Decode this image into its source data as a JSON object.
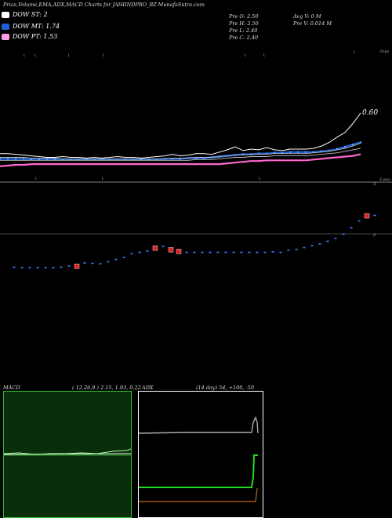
{
  "header": {
    "title": "Price,Volume,EMA,ADX,MACD Charts for JAIHINDPRO_BZ MunafaSutra.com"
  },
  "legend": [
    {
      "label": "DOW ST: 2",
      "color": "#ffffff"
    },
    {
      "label": "DOW MT: 1.74",
      "color": "#1e5fd6"
    },
    {
      "label": "DOW PT: 1.53",
      "color": "#ff9ee8"
    }
  ],
  "stats": {
    "prev_open": "Pre   O: 2.50",
    "prev_high": "Pre   H: 2.50",
    "prev_low": "Pre   L: 2.40",
    "prev_close": "Pre   C: 2.40",
    "avg_volume": "Avg V: 0   M",
    "prev_volume": "Pre   V: 0.014   M"
  },
  "colors": {
    "price": "#ffffff",
    "ema_short": "#1e5fd6",
    "ema_long": "#ff66cc",
    "ema_grey": "#bbbbbb",
    "macd_bg": "#0a2e0a",
    "macd_border": "#2fbf2f",
    "adx_green": "#22dd22",
    "adx_orange": "#c06a20",
    "adx_grey": "#aaaaaa"
  },
  "chart_data": [
    {
      "type": "line",
      "name": "price-ema",
      "x": [
        0,
        1,
        2,
        3,
        4,
        5,
        6,
        7,
        8,
        9,
        10,
        11,
        12,
        13,
        14,
        15,
        16,
        17,
        18,
        19,
        20,
        21,
        22,
        23,
        24,
        25,
        26,
        27,
        28,
        29,
        30,
        31,
        32,
        33,
        34,
        35,
        36,
        37,
        38,
        39,
        40,
        41,
        42,
        43,
        44,
        45,
        46
      ],
      "series": [
        {
          "key": "price",
          "values": [
            1.38,
            1.38,
            1.37,
            1.36,
            1.35,
            1.34,
            1.33,
            1.33,
            1.34,
            1.33,
            1.33,
            1.32,
            1.33,
            1.32,
            1.33,
            1.34,
            1.33,
            1.33,
            1.32,
            1.33,
            1.34,
            1.35,
            1.37,
            1.35,
            1.36,
            1.38,
            1.38,
            1.37,
            1.4,
            1.43,
            1.47,
            1.42,
            1.44,
            1.43,
            1.46,
            1.43,
            1.42,
            1.44,
            1.44,
            1.44,
            1.45,
            1.48,
            1.53,
            1.6,
            1.66,
            1.78,
            1.92
          ]
        },
        {
          "key": "ema_short",
          "values": [
            1.31,
            1.31,
            1.31,
            1.31,
            1.3,
            1.3,
            1.3,
            1.3,
            1.3,
            1.3,
            1.3,
            1.3,
            1.3,
            1.3,
            1.3,
            1.3,
            1.3,
            1.3,
            1.3,
            1.3,
            1.3,
            1.31,
            1.31,
            1.31,
            1.32,
            1.32,
            1.32,
            1.33,
            1.34,
            1.35,
            1.36,
            1.37,
            1.37,
            1.38,
            1.38,
            1.39,
            1.39,
            1.4,
            1.4,
            1.4,
            1.4,
            1.41,
            1.42,
            1.44,
            1.47,
            1.5,
            1.53
          ]
        },
        {
          "key": "ema_grey1",
          "values": [
            1.33,
            1.33,
            1.33,
            1.33,
            1.32,
            1.32,
            1.32,
            1.32,
            1.31,
            1.31,
            1.31,
            1.31,
            1.31,
            1.31,
            1.31,
            1.31,
            1.31,
            1.31,
            1.31,
            1.31,
            1.31,
            1.31,
            1.32,
            1.32,
            1.32,
            1.33,
            1.33,
            1.33,
            1.34,
            1.35,
            1.36,
            1.36,
            1.37,
            1.37,
            1.37,
            1.38,
            1.38,
            1.38,
            1.38,
            1.38,
            1.39,
            1.4,
            1.41,
            1.43,
            1.45,
            1.48,
            1.52
          ]
        },
        {
          "key": "ema_grey2",
          "values": [
            1.29,
            1.29,
            1.29,
            1.29,
            1.29,
            1.29,
            1.29,
            1.29,
            1.29,
            1.29,
            1.29,
            1.29,
            1.29,
            1.29,
            1.29,
            1.29,
            1.29,
            1.29,
            1.29,
            1.29,
            1.29,
            1.29,
            1.29,
            1.29,
            1.29,
            1.3,
            1.3,
            1.3,
            1.31,
            1.32,
            1.33,
            1.33,
            1.34,
            1.34,
            1.34,
            1.35,
            1.35,
            1.35,
            1.35,
            1.35,
            1.36,
            1.37,
            1.38,
            1.39,
            1.41,
            1.43,
            1.45
          ]
        },
        {
          "key": "ema_long",
          "values": [
            1.21,
            1.22,
            1.23,
            1.23,
            1.24,
            1.24,
            1.24,
            1.24,
            1.24,
            1.24,
            1.24,
            1.24,
            1.24,
            1.24,
            1.24,
            1.24,
            1.24,
            1.24,
            1.24,
            1.24,
            1.24,
            1.24,
            1.24,
            1.24,
            1.24,
            1.24,
            1.24,
            1.24,
            1.24,
            1.25,
            1.26,
            1.27,
            1.28,
            1.28,
            1.29,
            1.29,
            1.29,
            1.29,
            1.29,
            1.29,
            1.3,
            1.31,
            1.32,
            1.33,
            1.34,
            1.35,
            1.37
          ]
        }
      ],
      "ylim": [
        1.0,
        2.8
      ],
      "last_label": "0.60",
      "top_tag": "-Tops",
      "bottom_tag": "-Lows"
    },
    {
      "type": "scatter",
      "name": "volume",
      "x": [
        0,
        1,
        2,
        3,
        4,
        5,
        6,
        7,
        8,
        9,
        10,
        11,
        12,
        13,
        14,
        15,
        16,
        17,
        18,
        19,
        20,
        21,
        22,
        23,
        24,
        25,
        26,
        27,
        28,
        29,
        30,
        31,
        32,
        33,
        34,
        35,
        36,
        37,
        38,
        39,
        40,
        41,
        42,
        43,
        44,
        45,
        46
      ],
      "values": [
        1.03,
        1.02,
        1.02,
        1.02,
        1.02,
        1.02,
        1.03,
        1.06,
        1.05,
        1.13,
        1.12,
        1.11,
        1.16,
        1.21,
        1.26,
        1.35,
        1.38,
        1.41,
        1.48,
        1.52,
        1.44,
        1.4,
        1.38,
        1.38,
        1.38,
        1.38,
        1.38,
        1.38,
        1.38,
        1.38,
        1.38,
        1.38,
        1.38,
        1.39,
        1.38,
        1.43,
        1.45,
        1.49,
        1.54,
        1.58,
        1.64,
        1.71,
        1.81,
        1.96,
        2.12,
        2.24,
        2.25
      ],
      "red_points": [
        8,
        18,
        20,
        21,
        45
      ],
      "ylabels": [
        "3",
        "2"
      ]
    },
    {
      "type": "line",
      "name": "macd",
      "title": "MACD",
      "params": "( 12,26,9 ) 2.15,  1.93,  0.22"
    },
    {
      "type": "line",
      "name": "adx",
      "title": "ADX",
      "params": "(14  day) 54,  +100,  -50"
    }
  ]
}
